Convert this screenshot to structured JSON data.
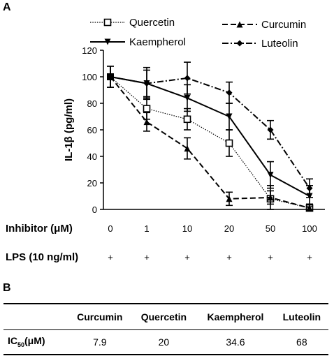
{
  "panel_a_label": "A",
  "panel_b_label": "B",
  "chart_data": {
    "type": "line",
    "ylabel": "IL-1β (pg/ml)",
    "ylim": [
      0,
      120
    ],
    "yticks": [
      0,
      20,
      40,
      60,
      80,
      100,
      120
    ],
    "categories": [
      "0",
      "1",
      "10",
      "20",
      "50",
      "100"
    ],
    "row_labels": [
      "Inhibitor (μM)",
      "LPS (10 ng/ml)"
    ],
    "lps_row": [
      "+",
      "+",
      "+",
      "+",
      "+",
      "+"
    ],
    "legend_position": "top",
    "series": [
      {
        "name": "Quercetin",
        "style": "dotted",
        "marker": "open-square",
        "values": [
          100,
          76,
          68,
          50,
          8,
          1
        ],
        "errors": [
          8,
          8,
          8,
          10,
          10,
          3
        ]
      },
      {
        "name": "Kaempherol",
        "style": "solid",
        "marker": "down-triangle",
        "values": [
          100,
          95,
          84,
          70,
          26,
          10
        ],
        "errors": [
          8,
          10,
          10,
          10,
          10,
          8
        ]
      },
      {
        "name": "Curcumin",
        "style": "dashed",
        "marker": "up-triangle",
        "values": [
          100,
          66,
          46,
          8,
          9,
          1
        ],
        "errors": [
          8,
          7,
          8,
          5,
          5,
          3
        ]
      },
      {
        "name": "Luteolin",
        "style": "dashdot",
        "marker": "diamond",
        "values": [
          100,
          95,
          99,
          88,
          60,
          16
        ],
        "errors": [
          8,
          12,
          12,
          8,
          7,
          7
        ]
      }
    ]
  },
  "ic50_table": {
    "row_label": "IC50(μM)",
    "row_label_main": "IC",
    "row_label_sub": "50",
    "row_label_unit": "(μM)",
    "columns": [
      "Curcumin",
      "Quercetin",
      "Kaempherol",
      "Luteolin"
    ],
    "values": [
      "7.9",
      "20",
      "34.6",
      "68"
    ]
  }
}
